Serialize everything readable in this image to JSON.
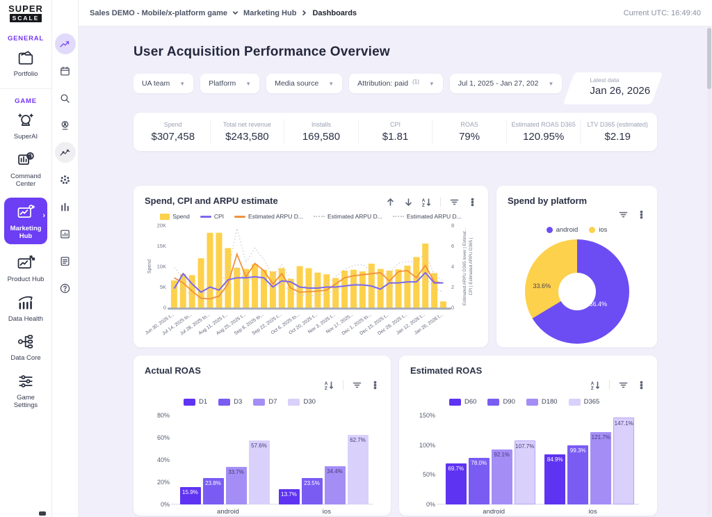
{
  "logo": {
    "top": "SUPER",
    "bottom": "SCALE"
  },
  "topbar": {
    "game": "Sales DEMO - Mobile/x-platform game",
    "section": "Marketing Hub",
    "page": "Dashboards",
    "utc": "Current UTC: 16:49:40"
  },
  "sidebar": {
    "sections": [
      {
        "label": "GENERAL",
        "items": [
          {
            "label": "Portfolio"
          }
        ]
      },
      {
        "label": "GAME",
        "items": [
          {
            "label": "SuperAI"
          },
          {
            "label": "Command Center"
          },
          {
            "label": "Marketing Hub"
          },
          {
            "label": "Product Hub"
          },
          {
            "label": "Data Health"
          },
          {
            "label": "Data Core"
          },
          {
            "label": "Game Settings"
          }
        ]
      }
    ]
  },
  "page": {
    "title": "User Acquisition Performance Overview"
  },
  "filters": {
    "chips": [
      {
        "label": "UA team"
      },
      {
        "label": "Platform"
      },
      {
        "label": "Media source"
      },
      {
        "label": "Attribution: paid",
        "badge": "(1)"
      },
      {
        "label": "Jul 1, 2025 - Jan 27, 202"
      }
    ],
    "latest": {
      "label": "Latest data",
      "value": "Jan 26, 2026"
    }
  },
  "kpis": [
    {
      "label": "Spend",
      "value": "$307,458"
    },
    {
      "label": "Total net revenue",
      "value": "$243,580"
    },
    {
      "label": "Installs",
      "value": "169,580"
    },
    {
      "label": "CPI",
      "value": "$1.81"
    },
    {
      "label": "ROAS",
      "value": "79%"
    },
    {
      "label": "Estimated ROAS D365",
      "value": "120.95%"
    },
    {
      "label": "LTV D365 (estimated)",
      "value": "$2.19"
    }
  ],
  "colors": {
    "accent": "#6c3ef4",
    "bar_yellow": "#fdd14b",
    "cpi_line": "#7b68f0",
    "arpu_line": "#f1913d",
    "dotted": "#c8c8d2",
    "donut_purple": "#6c4df3",
    "series": [
      "#5f33f2",
      "#7a5cf3",
      "#a48ef6",
      "#d9d0fb"
    ]
  },
  "chart_data": [
    {
      "id": "spend_cpi_arpu",
      "type": "combo-bar-line",
      "title": "Spend, CPI and ARPU estimate",
      "ylabel_left": "Spend",
      "ylabel_right": [
        "Estimated ARPU D365 lower | Estimat...",
        "CPI | Estimated ARPU D365 |"
      ],
      "yticks_left": [
        "0",
        "5K",
        "10K",
        "15K",
        "20K"
      ],
      "ylim_left": [
        0,
        20000
      ],
      "yticks_right": [
        "0",
        "2",
        "4",
        "6",
        "8"
      ],
      "ylim_right": [
        0,
        8
      ],
      "legend": [
        {
          "label": "Spend",
          "swatch": "bar",
          "color": "#fdd14b"
        },
        {
          "label": "CPI",
          "swatch": "line",
          "color": "#7b68f0"
        },
        {
          "label": "Estimated ARPU D...",
          "swatch": "line",
          "color": "#f1913d"
        },
        {
          "label": "Estimated ARPU D...",
          "swatch": "dotted",
          "color": "#c8c8d2"
        },
        {
          "label": "Estimated ARPU D...",
          "swatch": "dotted",
          "color": "#c8c8d2"
        }
      ],
      "x_tick_labels": [
        "Jun 30, 2025 t...",
        "Jul 14, 2025 to...",
        "Jul 28, 2025 to...",
        "Aug 11, 2025 t...",
        "Aug 25, 2025 t...",
        "Sep 8, 2025 to...",
        "Sep 22, 2025 t...",
        "Oct 6, 2025 to...",
        "Oct 20, 2025 t...",
        "Nov 3, 2025 t...",
        "Nov 17, 2025...",
        "Dec 1, 2025 to...",
        "Dec 15, 2025 t...",
        "Dec 29, 2025 t...",
        "Jan 12, 2026 t...",
        "Jan 26, 2026 t..."
      ],
      "spend": [
        6600,
        8200,
        7900,
        12000,
        18200,
        18200,
        14500,
        9700,
        9400,
        10600,
        9200,
        8800,
        9600,
        7000,
        10100,
        9600,
        8500,
        8100,
        7200,
        9000,
        9200,
        8800,
        10700,
        9400,
        9000,
        9300,
        10200,
        12300,
        15600,
        8400,
        1500
      ],
      "cpi": [
        1.85,
        3.3,
        2.3,
        1.5,
        2.0,
        1.7,
        2.7,
        2.9,
        2.9,
        3.0,
        2.9,
        2.0,
        2.6,
        2.5,
        2.0,
        1.9,
        1.9,
        2.0,
        2.0,
        2.1,
        2.2,
        2.2,
        2.1,
        1.8,
        2.4,
        2.4,
        2.5,
        2.5,
        3.4,
        2.4,
        2.4
      ],
      "arpu": [
        2.9,
        2.4,
        1.6,
        0.9,
        0.85,
        1.1,
        2.3,
        5.2,
        3.0,
        4.3,
        3.6,
        2.3,
        3.3,
        1.9,
        1.5,
        1.55,
        1.6,
        1.7,
        2.3,
        2.9,
        3.1,
        3.2,
        3.3,
        3.4,
        2.6,
        3.5,
        3.6,
        2.9,
        4.1,
        2.5,
        2.4
      ],
      "arpu_upper": [
        3.9,
        2.9,
        2.0,
        1.4,
        1.5,
        2.2,
        3.5,
        7.7,
        4.4,
        5.8,
        4.7,
        3.0,
        4.2,
        2.6,
        2.0,
        2.1,
        2.1,
        2.3,
        3.0,
        3.7,
        4.1,
        4.2,
        3.5,
        3.0,
        3.4,
        4.3,
        4.5,
        4.4,
        5.3,
        3.2,
        2.6
      ],
      "arpu_lower": [
        2.2,
        1.7,
        1.2,
        0.8,
        0.9,
        1.3,
        2.0,
        4.0,
        2.3,
        3.1,
        2.6,
        1.7,
        2.4,
        1.5,
        1.2,
        1.2,
        1.2,
        1.3,
        1.7,
        2.1,
        2.3,
        2.4,
        2.0,
        1.7,
        1.9,
        2.4,
        2.6,
        2.5,
        3.0,
        1.9,
        1.5
      ]
    },
    {
      "id": "spend_by_platform",
      "type": "pie",
      "title": "Spend by platform",
      "slices": [
        {
          "label": "android",
          "value": 66.4,
          "pct_label": "66.4%",
          "color": "#6c4df3"
        },
        {
          "label": "ios",
          "value": 33.6,
          "pct_label": "33.6%",
          "color": "#fdd14b"
        }
      ]
    },
    {
      "id": "actual_roas",
      "type": "bar",
      "title": "Actual ROAS",
      "categories": [
        "android",
        "ios"
      ],
      "series": [
        {
          "name": "D1",
          "values": [
            15.9,
            13.7
          ]
        },
        {
          "name": "D3",
          "values": [
            23.8,
            23.5
          ]
        },
        {
          "name": "D7",
          "values": [
            33.7,
            34.4
          ]
        },
        {
          "name": "D30",
          "values": [
            57.6,
            62.7
          ]
        }
      ],
      "yticks": [
        "0%",
        "20%",
        "40%",
        "60%",
        "80%"
      ],
      "ylim": [
        0,
        80
      ]
    },
    {
      "id": "estimated_roas",
      "type": "bar",
      "title": "Estimated ROAS",
      "categories": [
        "android",
        "ios"
      ],
      "series": [
        {
          "name": "D60",
          "values": [
            69.7,
            84.9
          ]
        },
        {
          "name": "D90",
          "values": [
            78.0,
            99.3
          ]
        },
        {
          "name": "D180",
          "values": [
            92.1,
            121.7
          ]
        },
        {
          "name": "D365",
          "values": [
            107.7,
            147.1
          ]
        }
      ],
      "yticks": [
        "0%",
        "50%",
        "100%",
        "150%"
      ],
      "ylim": [
        0,
        150
      ]
    }
  ]
}
